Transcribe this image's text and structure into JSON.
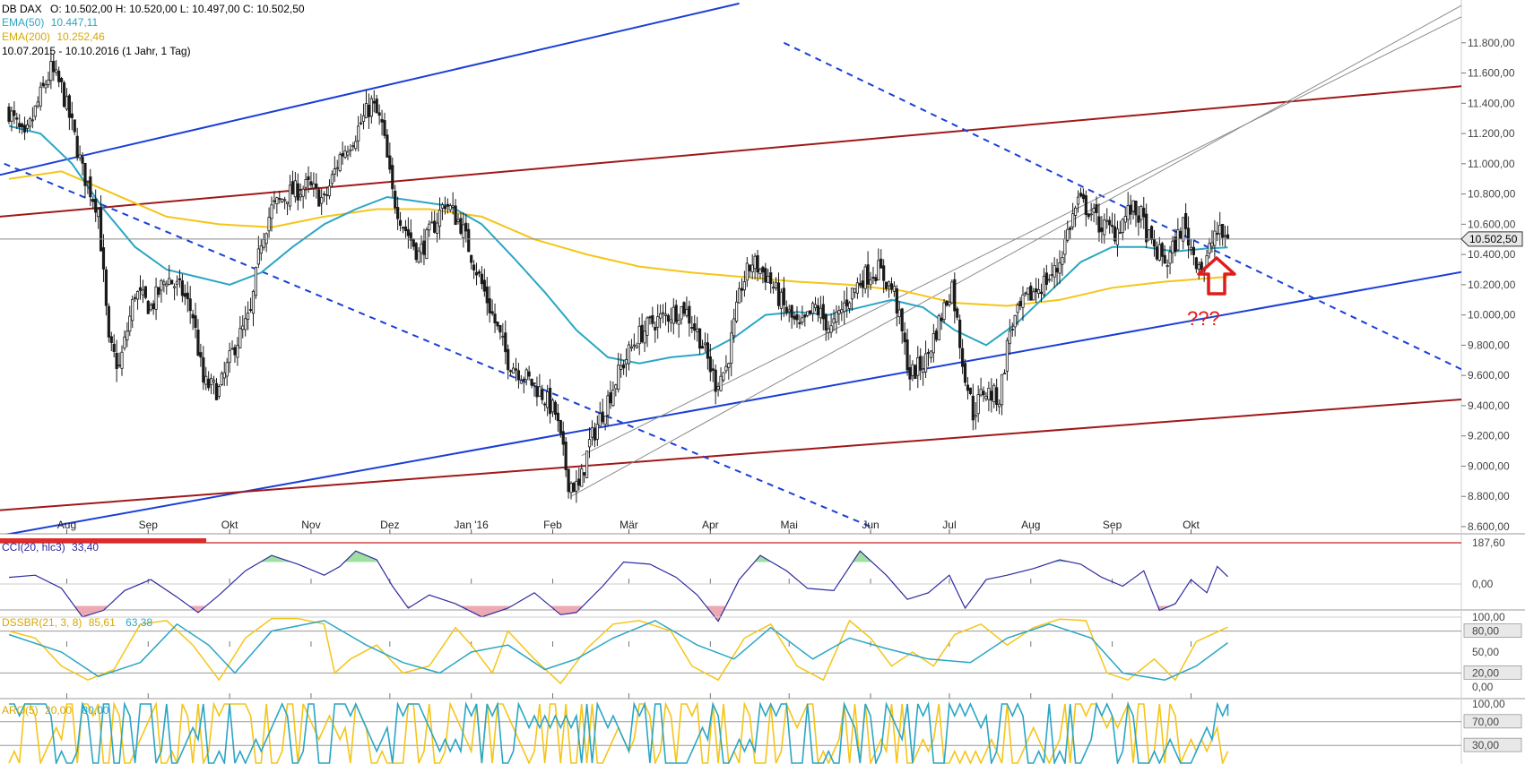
{
  "colors": {
    "candle": "#1a1a1a",
    "ema50": "#2aa6c4",
    "ema200": "#f5c518",
    "blue_line": "#1a3fd6",
    "red_line": "#a01818",
    "grey_line": "#8c8c8c",
    "cci_line": "#2e2a9e",
    "cci_pos_fill": "#9fe0a0",
    "cci_neg_fill": "#eda9b3",
    "osc_yellow": "#f5c518",
    "osc_teal": "#2aa6c4",
    "price_tag_bg": "#e8e8e8",
    "annotation_red": "#e01b1b"
  },
  "header": {
    "symbol": "DB DAX",
    "ohlc": "O: 10.502,00   H: 10.520,00   L: 10.497,00   C: 10.502,50",
    "ema50_label": "EMA(50)",
    "ema50_value": "10.447,11",
    "ema200_label": "EMA(200)",
    "ema200_value": "10.252,46",
    "range": "10.07.2015 - 10.10.2016 (1 Jahr, 1 Tag)"
  },
  "annotation": {
    "text": "???"
  },
  "chart_data": [
    {
      "type": "candlestick",
      "title": "DB DAX",
      "last_price_label": "10.502,50",
      "ylim": [
        8600,
        12000
      ],
      "y_tick_labels": [
        "11.800,00",
        "11.600,00",
        "11.400,00",
        "11.200,00",
        "11.000,00",
        "10.800,00",
        "10.600,00",
        "10.400,00",
        "10.200,00",
        "10.000,00",
        "9.800,00",
        "9.600,00",
        "9.400,00",
        "9.200,00",
        "9.000,00",
        "8.800,00",
        "8.600,00"
      ],
      "y_tick_values": [
        11800,
        11600,
        11400,
        11200,
        11000,
        10800,
        10600,
        10400,
        10200,
        10000,
        9800,
        9600,
        9400,
        9200,
        9000,
        8800,
        8600
      ],
      "x_tick_labels": [
        "Aug",
        "Sep",
        "Okt",
        "Nov",
        "Dez",
        "Jan '16",
        "Feb",
        "Mär",
        "Apr",
        "Mai",
        "Jun",
        "Jul",
        "Aug",
        "Sep",
        "Okt"
      ],
      "x_tick_days": [
        22,
        53,
        84,
        115,
        145,
        176,
        207,
        236,
        267,
        297,
        328,
        358,
        389,
        420,
        450
      ],
      "close_path": [
        [
          0,
          11350
        ],
        [
          6,
          11150
        ],
        [
          12,
          11450
        ],
        [
          16,
          11620
        ],
        [
          20,
          11500
        ],
        [
          24,
          11250
        ],
        [
          28,
          10950
        ],
        [
          34,
          10700
        ],
        [
          38,
          9800
        ],
        [
          42,
          9650
        ],
        [
          48,
          10150
        ],
        [
          54,
          10050
        ],
        [
          60,
          10250
        ],
        [
          66,
          10150
        ],
        [
          70,
          10000
        ],
        [
          74,
          9550
        ],
        [
          80,
          9500
        ],
        [
          86,
          9800
        ],
        [
          92,
          10000
        ],
        [
          96,
          10500
        ],
        [
          100,
          10700
        ],
        [
          106,
          10800
        ],
        [
          114,
          10850
        ],
        [
          120,
          10750
        ],
        [
          126,
          11050
        ],
        [
          132,
          11200
        ],
        [
          138,
          11400
        ],
        [
          142,
          11250
        ],
        [
          146,
          10800
        ],
        [
          150,
          10600
        ],
        [
          156,
          10400
        ],
        [
          162,
          10600
        ],
        [
          166,
          10750
        ],
        [
          172,
          10600
        ],
        [
          178,
          10300
        ],
        [
          184,
          10000
        ],
        [
          190,
          9700
        ],
        [
          196,
          9600
        ],
        [
          202,
          9500
        ],
        [
          208,
          9350
        ],
        [
          213,
          8900
        ],
        [
          217,
          8850
        ],
        [
          221,
          9150
        ],
        [
          227,
          9400
        ],
        [
          233,
          9650
        ],
        [
          239,
          9850
        ],
        [
          245,
          9950
        ],
        [
          251,
          10000
        ],
        [
          257,
          10050
        ],
        [
          263,
          9850
        ],
        [
          269,
          9550
        ],
        [
          273,
          9650
        ],
        [
          279,
          10200
        ],
        [
          283,
          10350
        ],
        [
          289,
          10250
        ],
        [
          295,
          10050
        ],
        [
          301,
          9900
        ],
        [
          307,
          10050
        ],
        [
          313,
          9900
        ],
        [
          319,
          10100
        ],
        [
          325,
          10250
        ],
        [
          331,
          10300
        ],
        [
          337,
          10150
        ],
        [
          343,
          9600
        ],
        [
          349,
          9700
        ],
        [
          355,
          10000
        ],
        [
          359,
          10200
        ],
        [
          363,
          9700
        ],
        [
          367,
          9350
        ],
        [
          371,
          9500
        ],
        [
          377,
          9450
        ],
        [
          381,
          9900
        ],
        [
          387,
          10100
        ],
        [
          393,
          10200
        ],
        [
          399,
          10300
        ],
        [
          403,
          10550
        ],
        [
          407,
          10750
        ],
        [
          411,
          10700
        ],
        [
          415,
          10600
        ],
        [
          421,
          10550
        ],
        [
          427,
          10700
        ],
        [
          431,
          10650
        ],
        [
          435,
          10450
        ],
        [
          441,
          10350
        ],
        [
          447,
          10600
        ],
        [
          451,
          10400
        ],
        [
          455,
          10300
        ],
        [
          459,
          10550
        ],
        [
          464,
          10502.5
        ]
      ],
      "ema50_path": [
        [
          0,
          11250
        ],
        [
          12,
          11200
        ],
        [
          24,
          11000
        ],
        [
          36,
          10700
        ],
        [
          48,
          10450
        ],
        [
          60,
          10300
        ],
        [
          72,
          10250
        ],
        [
          84,
          10200
        ],
        [
          96,
          10280
        ],
        [
          108,
          10450
        ],
        [
          120,
          10600
        ],
        [
          132,
          10700
        ],
        [
          144,
          10780
        ],
        [
          156,
          10750
        ],
        [
          168,
          10720
        ],
        [
          180,
          10600
        ],
        [
          192,
          10380
        ],
        [
          204,
          10150
        ],
        [
          216,
          9900
        ],
        [
          228,
          9720
        ],
        [
          240,
          9680
        ],
        [
          252,
          9720
        ],
        [
          264,
          9740
        ],
        [
          276,
          9850
        ],
        [
          288,
          10000
        ],
        [
          300,
          10020
        ],
        [
          312,
          10000
        ],
        [
          324,
          10050
        ],
        [
          336,
          10100
        ],
        [
          348,
          10050
        ],
        [
          360,
          9900
        ],
        [
          372,
          9800
        ],
        [
          384,
          9950
        ],
        [
          396,
          10150
        ],
        [
          408,
          10350
        ],
        [
          420,
          10450
        ],
        [
          432,
          10450
        ],
        [
          444,
          10420
        ],
        [
          456,
          10440
        ],
        [
          464,
          10447.11
        ]
      ],
      "ema200_path": [
        [
          0,
          10900
        ],
        [
          20,
          10950
        ],
        [
          40,
          10800
        ],
        [
          60,
          10650
        ],
        [
          80,
          10600
        ],
        [
          100,
          10580
        ],
        [
          120,
          10650
        ],
        [
          140,
          10700
        ],
        [
          160,
          10700
        ],
        [
          180,
          10650
        ],
        [
          200,
          10500
        ],
        [
          220,
          10400
        ],
        [
          240,
          10320
        ],
        [
          260,
          10280
        ],
        [
          280,
          10250
        ],
        [
          300,
          10220
        ],
        [
          320,
          10200
        ],
        [
          340,
          10160
        ],
        [
          360,
          10080
        ],
        [
          380,
          10060
        ],
        [
          400,
          10100
        ],
        [
          420,
          10180
        ],
        [
          440,
          10220
        ],
        [
          464,
          10252.46
        ]
      ],
      "trendlines": [
        {
          "style": "solid-blue",
          "from": [
            -10,
            10900
          ],
          "to": [
            278,
            12060
          ]
        },
        {
          "style": "solid-blue",
          "from": [
            -10,
            8520
          ],
          "to": [
            590,
            10400
          ]
        },
        {
          "style": "solid-red",
          "from": [
            -10,
            10640
          ],
          "to": [
            590,
            11570
          ]
        },
        {
          "style": "solid-red",
          "from": [
            -10,
            8700
          ],
          "to": [
            590,
            9490
          ]
        },
        {
          "style": "dashed-blue",
          "from": [
            -10,
            11060
          ],
          "to": [
            328,
            8600
          ]
        },
        {
          "style": "dashed-blue",
          "from": [
            295,
            11800
          ],
          "to": [
            590,
            9330
          ]
        },
        {
          "style": "solid-grey",
          "from": [
            218,
            9070
          ],
          "to": [
            570,
            12120
          ]
        },
        {
          "style": "solid-grey",
          "from": [
            214,
            8800
          ],
          "to": [
            570,
            12210
          ]
        }
      ]
    },
    {
      "type": "line",
      "title": "CCI(20, hlc3)",
      "label": "CCI(20, hlc3)",
      "value": "33,40",
      "y_tick_labels": [
        "187,60",
        "0,00"
      ],
      "path": [
        [
          0,
          30
        ],
        [
          10,
          40
        ],
        [
          20,
          -20
        ],
        [
          28,
          -150
        ],
        [
          36,
          -120
        ],
        [
          44,
          -30
        ],
        [
          54,
          20
        ],
        [
          64,
          -60
        ],
        [
          72,
          -130
        ],
        [
          80,
          -50
        ],
        [
          90,
          60
        ],
        [
          100,
          130
        ],
        [
          110,
          90
        ],
        [
          120,
          40
        ],
        [
          126,
          80
        ],
        [
          132,
          150
        ],
        [
          140,
          110
        ],
        [
          146,
          -10
        ],
        [
          152,
          -110
        ],
        [
          160,
          -50
        ],
        [
          170,
          -90
        ],
        [
          180,
          -150
        ],
        [
          190,
          -110
        ],
        [
          200,
          -40
        ],
        [
          210,
          -140
        ],
        [
          216,
          -130
        ],
        [
          226,
          -10
        ],
        [
          234,
          100
        ],
        [
          244,
          90
        ],
        [
          254,
          30
        ],
        [
          262,
          -50
        ],
        [
          270,
          -170
        ],
        [
          278,
          20
        ],
        [
          286,
          130
        ],
        [
          296,
          60
        ],
        [
          304,
          -20
        ],
        [
          314,
          -30
        ],
        [
          324,
          150
        ],
        [
          334,
          40
        ],
        [
          342,
          -70
        ],
        [
          350,
          -40
        ],
        [
          358,
          40
        ],
        [
          364,
          -110
        ],
        [
          372,
          20
        ],
        [
          380,
          40
        ],
        [
          390,
          70
        ],
        [
          400,
          110
        ],
        [
          408,
          90
        ],
        [
          416,
          30
        ],
        [
          424,
          -10
        ],
        [
          432,
          60
        ],
        [
          438,
          -120
        ],
        [
          444,
          -90
        ],
        [
          450,
          20
        ],
        [
          456,
          -40
        ],
        [
          460,
          80
        ],
        [
          464,
          33.4
        ]
      ]
    },
    {
      "type": "line",
      "title": "DSSBR(21, 3, 8)",
      "label": "DSSBR(21, 3, 8)",
      "value_yellow": "85,61",
      "value_teal": "63,38",
      "y_tick_labels": [
        "100,00",
        "80,00",
        "50,00",
        "20,00",
        "0,00"
      ],
      "yellow_path": [
        [
          0,
          80
        ],
        [
          10,
          70
        ],
        [
          20,
          30
        ],
        [
          30,
          10
        ],
        [
          40,
          25
        ],
        [
          50,
          90
        ],
        [
          60,
          95
        ],
        [
          70,
          60
        ],
        [
          80,
          10
        ],
        [
          90,
          70
        ],
        [
          100,
          98
        ],
        [
          110,
          98
        ],
        [
          120,
          90
        ],
        [
          124,
          20
        ],
        [
          130,
          40
        ],
        [
          140,
          60
        ],
        [
          150,
          20
        ],
        [
          160,
          30
        ],
        [
          170,
          85
        ],
        [
          176,
          60
        ],
        [
          184,
          20
        ],
        [
          190,
          80
        ],
        [
          200,
          40
        ],
        [
          210,
          5
        ],
        [
          220,
          55
        ],
        [
          230,
          90
        ],
        [
          240,
          95
        ],
        [
          252,
          80
        ],
        [
          260,
          30
        ],
        [
          270,
          10
        ],
        [
          280,
          70
        ],
        [
          290,
          90
        ],
        [
          300,
          30
        ],
        [
          310,
          10
        ],
        [
          320,
          95
        ],
        [
          328,
          70
        ],
        [
          336,
          30
        ],
        [
          344,
          50
        ],
        [
          352,
          30
        ],
        [
          360,
          75
        ],
        [
          370,
          90
        ],
        [
          380,
          60
        ],
        [
          390,
          85
        ],
        [
          400,
          97
        ],
        [
          410,
          95
        ],
        [
          418,
          20
        ],
        [
          426,
          10
        ],
        [
          436,
          40
        ],
        [
          444,
          10
        ],
        [
          452,
          65
        ],
        [
          464,
          85.61
        ]
      ],
      "teal_path": [
        [
          0,
          75
        ],
        [
          20,
          50
        ],
        [
          34,
          15
        ],
        [
          50,
          35
        ],
        [
          64,
          90
        ],
        [
          76,
          60
        ],
        [
          86,
          20
        ],
        [
          100,
          80
        ],
        [
          120,
          95
        ],
        [
          136,
          60
        ],
        [
          150,
          35
        ],
        [
          164,
          20
        ],
        [
          176,
          50
        ],
        [
          190,
          60
        ],
        [
          204,
          25
        ],
        [
          216,
          40
        ],
        [
          230,
          70
        ],
        [
          246,
          95
        ],
        [
          262,
          60
        ],
        [
          276,
          40
        ],
        [
          290,
          85
        ],
        [
          306,
          40
        ],
        [
          320,
          70
        ],
        [
          334,
          55
        ],
        [
          350,
          40
        ],
        [
          366,
          35
        ],
        [
          380,
          70
        ],
        [
          396,
          90
        ],
        [
          412,
          70
        ],
        [
          424,
          20
        ],
        [
          440,
          10
        ],
        [
          452,
          30
        ],
        [
          464,
          63.38
        ]
      ]
    },
    {
      "type": "line",
      "title": "ARO(5)",
      "label": "ARO(5)",
      "value_yellow": "20,00",
      "value_teal": "80,00",
      "y_tick_labels": [
        "100,00",
        "70,00",
        "30,00"
      ]
    }
  ]
}
